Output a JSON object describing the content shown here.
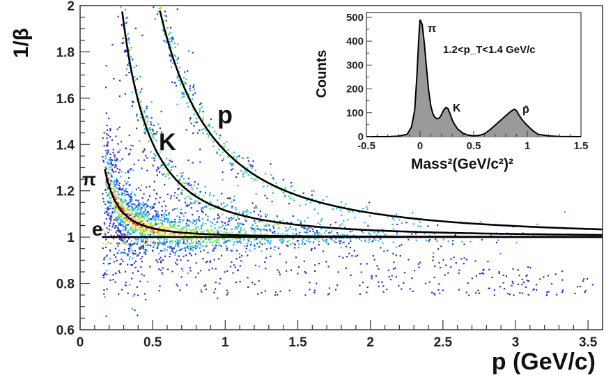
{
  "chart_data": [
    {
      "type": "scatter",
      "ylabel": "1/β",
      "xlabel": "p (GeV/c)",
      "xlim": [
        0,
        3.6
      ],
      "ylim": [
        0.6,
        2.0
      ],
      "x_ticks": [
        "0",
        "0.5",
        "1",
        "1.5",
        "2",
        "2.5",
        "3",
        "3.5"
      ],
      "y_ticks": [
        "0.6",
        "0.8",
        "1",
        "1.2",
        "1.4",
        "1.6",
        "1.8",
        "2"
      ],
      "x_tick_values": [
        0,
        0.5,
        1,
        1.5,
        2,
        2.5,
        3,
        3.5
      ],
      "y_tick_values": [
        0.6,
        0.8,
        1.0,
        1.2,
        1.4,
        1.6,
        1.8,
        2.0
      ],
      "grid": false,
      "colors": [
        "#2b2bd9",
        "#20b4e6",
        "#7ee860",
        "#f2e21a",
        "#f08a18",
        "#e02a10"
      ],
      "bands": [
        {
          "label": "e",
          "mass": 0.000511,
          "p_min": 0.15
        },
        {
          "label": "π",
          "mass": 0.1396,
          "p_min": 0.17
        },
        {
          "label": "K",
          "mass": 0.4937,
          "p_min": 0.25
        },
        {
          "label": "p",
          "mass": 0.9383,
          "p_min": 0.5
        }
      ]
    },
    {
      "type": "line",
      "xlabel": "Mass²(GeV/c²)²",
      "ylabel": "Counts",
      "xlim": [
        -0.5,
        1.5
      ],
      "ylim": [
        0,
        520
      ],
      "x_ticks": [
        "-0.5",
        "0",
        "0.5",
        "1",
        "1.5"
      ],
      "y_ticks": [
        "0",
        "100",
        "200",
        "300",
        "400",
        "500"
      ],
      "x_tick_values": [
        -0.5,
        0,
        0.5,
        1,
        1.5
      ],
      "y_tick_values": [
        0,
        100,
        200,
        300,
        400,
        500
      ],
      "annotation": "1.2<p_T<1.4 GeV/c",
      "peak_labels": [
        "π",
        "K",
        "p̄"
      ],
      "x": [
        -0.5,
        -0.3,
        -0.2,
        -0.12,
        -0.08,
        -0.05,
        -0.03,
        -0.01,
        0.0,
        0.02,
        0.04,
        0.06,
        0.08,
        0.1,
        0.12,
        0.14,
        0.16,
        0.18,
        0.2,
        0.22,
        0.24,
        0.26,
        0.28,
        0.3,
        0.32,
        0.35,
        0.4,
        0.45,
        0.5,
        0.55,
        0.6,
        0.65,
        0.7,
        0.75,
        0.8,
        0.83,
        0.86,
        0.88,
        0.9,
        0.92,
        0.95,
        0.98,
        1.02,
        1.06,
        1.1,
        1.2,
        1.3,
        1.5
      ],
      "values": [
        0,
        0,
        2,
        10,
        40,
        110,
        250,
        430,
        490,
        470,
        390,
        290,
        195,
        130,
        95,
        80,
        75,
        78,
        92,
        112,
        122,
        118,
        96,
        70,
        52,
        32,
        14,
        6,
        3,
        5,
        12,
        28,
        48,
        68,
        88,
        100,
        110,
        115,
        108,
        92,
        72,
        56,
        38,
        22,
        10,
        3,
        1,
        0
      ],
      "peak_positions": [
        0.02,
        0.26,
        0.88
      ]
    }
  ]
}
